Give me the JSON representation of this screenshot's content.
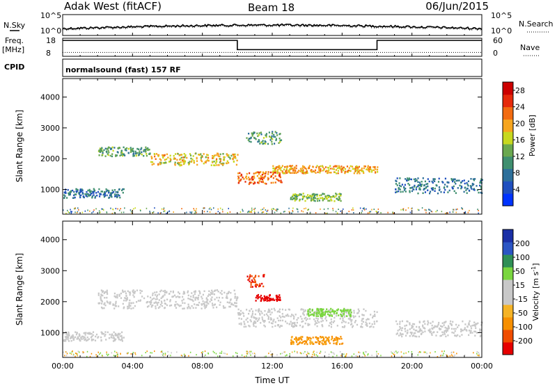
{
  "header": {
    "station": "Adak West (fitACF)",
    "beam": "Beam 18",
    "date": "06/Jun/2015"
  },
  "panel_labels": {
    "nsky": "N.Sky",
    "nsky_hi": "10^5",
    "nsky_lo": "10^0",
    "nsearch": "N.Search",
    "nsearch_hi": "10^5",
    "nsearch_lo": "10^0",
    "freq_line1": "Freq.",
    "freq_line2": "[MHz]",
    "freq_hi": "18",
    "freq_lo": "8",
    "nave": "Nave",
    "nave_hi": "60",
    "nave_lo": "0",
    "cpid": "CPID",
    "cpid_text": "normalsound (fast) 157 RF"
  },
  "colors": {
    "power": [
      "#0033ff",
      "#1f4fbf",
      "#2d6f9a",
      "#3f8f6f",
      "#6aa84f",
      "#c7d81f",
      "#f6a51f",
      "#f26b11",
      "#e62a0b",
      "#cc0000"
    ],
    "velocity_colorbar": [
      "#e60000",
      "#f04d00",
      "#f78f00",
      "#f5b326",
      "#c8c8c8",
      "#c8c8c8",
      "#7ad63f",
      "#2f8f56",
      "#2b55c4",
      "#1a2fa6"
    ]
  },
  "chart_data": [
    {
      "type": "heatmap",
      "name": "Power",
      "xlabel": "",
      "ylabel": "Slant Range [km]",
      "xlim": [
        "00:00",
        "00:00"
      ],
      "ylim": [
        200,
        4600
      ],
      "yticks": [
        "1000",
        "2000",
        "3000",
        "4000"
      ],
      "colorbar": {
        "label": "Power [dB]",
        "range": [
          0,
          30
        ],
        "ticks": [
          "4",
          "8",
          "12",
          "16",
          "20",
          "24",
          "28"
        ]
      },
      "echo_regions": [
        {
          "t_start": "00:00",
          "t_end": "03:30",
          "range_km": [
            750,
            1050
          ],
          "power_db": 8
        },
        {
          "t_start": "02:00",
          "t_end": "05:00",
          "range_km": [
            2100,
            2400
          ],
          "power_db": 12
        },
        {
          "t_start": "05:00",
          "t_end": "10:00",
          "range_km": [
            1800,
            2200
          ],
          "power_db": 18
        },
        {
          "t_start": "10:00",
          "t_end": "12:30",
          "range_km": [
            1200,
            1600
          ],
          "power_db": 22
        },
        {
          "t_start": "12:00",
          "t_end": "18:00",
          "range_km": [
            1550,
            1800
          ],
          "power_db": 20
        },
        {
          "t_start": "10:30",
          "t_end": "12:30",
          "range_km": [
            2500,
            2900
          ],
          "power_db": 12
        },
        {
          "t_start": "13:00",
          "t_end": "16:00",
          "range_km": [
            650,
            900
          ],
          "power_db": 14
        },
        {
          "t_start": "19:00",
          "t_end": "24:00",
          "range_km": [
            900,
            1400
          ],
          "power_db": 8
        }
      ]
    },
    {
      "type": "heatmap",
      "name": "Velocity",
      "xlabel": "Time UT",
      "ylabel": "Slant Range [km]",
      "xlim": [
        "00:00",
        "00:00"
      ],
      "ylim": [
        200,
        4600
      ],
      "xticks": [
        "00:00",
        "04:00",
        "08:00",
        "12:00",
        "16:00",
        "20:00",
        "00:00"
      ],
      "yticks": [
        "1000",
        "2000",
        "3000",
        "4000"
      ],
      "colorbar": {
        "label": "Velocity [m s^-1]",
        "ticks": [
          "200",
          "100",
          "50",
          "15",
          "-15",
          "-50",
          "-100",
          "-200"
        ]
      },
      "echo_regions": [
        {
          "t_start": "00:00",
          "t_end": "03:30",
          "range_km": [
            750,
            1050
          ],
          "velocity_ms": 0
        },
        {
          "t_start": "02:00",
          "t_end": "10:00",
          "range_km": [
            1800,
            2400
          ],
          "velocity_ms": 0
        },
        {
          "t_start": "10:00",
          "t_end": "18:00",
          "range_km": [
            1200,
            1800
          ],
          "velocity_ms": 0
        },
        {
          "t_start": "14:00",
          "t_end": "16:30",
          "range_km": [
            1550,
            1800
          ],
          "velocity_ms": 40
        },
        {
          "t_start": "10:30",
          "t_end": "11:30",
          "range_km": [
            2500,
            2900
          ],
          "velocity_ms": -150
        },
        {
          "t_start": "11:00",
          "t_end": "12:30",
          "range_km": [
            2050,
            2250
          ],
          "velocity_ms": -220
        },
        {
          "t_start": "13:00",
          "t_end": "16:00",
          "range_km": [
            650,
            900
          ],
          "velocity_ms": -40
        },
        {
          "t_start": "19:00",
          "t_end": "24:00",
          "range_km": [
            900,
            1400
          ],
          "velocity_ms": 0
        }
      ]
    }
  ]
}
